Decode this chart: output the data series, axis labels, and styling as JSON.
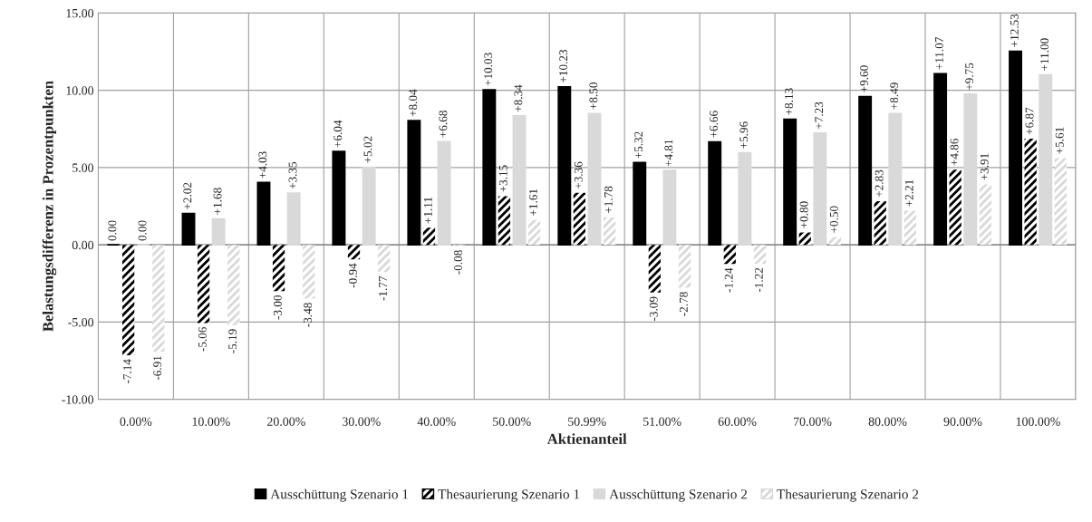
{
  "chart_data": {
    "type": "bar",
    "xlabel": "Aktienanteil",
    "ylabel": "Belastungsdifferenz in Prozentpunkten",
    "categories": [
      "0.00%",
      "10.00%",
      "20.00%",
      "30.00%",
      "40.00%",
      "50.00%",
      "50.99%",
      "51.00%",
      "60.00%",
      "70.00%",
      "80.00%",
      "90.00%",
      "100.00%"
    ],
    "series": [
      {
        "name": "Ausschüttung Szenario 1",
        "color": "#000000",
        "values": [
          0.0,
          2.02,
          4.03,
          6.04,
          8.04,
          10.03,
          10.23,
          5.32,
          6.66,
          8.13,
          9.6,
          11.07,
          12.53
        ],
        "value_labels": [
          "0.00",
          "+2.02",
          "+4.03",
          "+6.04",
          "+8.04",
          "+10.03",
          "+10.23",
          "+5.32",
          "+6.66",
          "+8.13",
          "+9.60",
          "+11.07",
          "+12.53"
        ]
      },
      {
        "name": "Thesaurierung Szenario 1",
        "color": "#000000",
        "values": [
          -7.14,
          -5.06,
          -3.0,
          -0.94,
          1.11,
          3.15,
          3.36,
          -3.09,
          -1.24,
          0.8,
          2.83,
          4.86,
          6.87
        ],
        "value_labels": [
          "-7.14",
          "-5.06",
          "-3.00",
          "-0.94",
          "+1.11",
          "+3.15",
          "+3.36",
          "-3.09",
          "-1.24",
          "+0.80",
          "+2.83",
          "+4.86",
          "+6.87"
        ]
      },
      {
        "name": "Ausschüttung Szenario 2",
        "color": "#d9d9d9",
        "values": [
          0.0,
          1.68,
          3.35,
          5.02,
          6.68,
          8.34,
          8.5,
          4.81,
          5.96,
          7.23,
          8.49,
          9.75,
          11.0
        ],
        "value_labels": [
          "0.00",
          "+1.68",
          "+3.35",
          "+5.02",
          "+6.68",
          "+8.34",
          "+8.50",
          "+4.81",
          "+5.96",
          "+7.23",
          "+8.49",
          "+9.75",
          "+11.00"
        ]
      },
      {
        "name": "Thesaurierung Szenario 2",
        "color": "#d9d9d9",
        "values": [
          -6.91,
          -5.19,
          -3.48,
          -1.77,
          -0.08,
          1.61,
          1.78,
          -2.78,
          -1.22,
          0.5,
          2.21,
          3.91,
          5.61
        ],
        "value_labels": [
          "-6.91",
          "-5.19",
          "-3.48",
          "-1.77",
          "-0.08",
          "+1.61",
          "+1.78",
          "-2.78",
          "-1.22",
          "+0.50",
          "+2.21",
          "+3.91",
          "+5.61"
        ]
      }
    ],
    "ylim": [
      -10,
      15
    ],
    "yticks": [
      {
        "value": -10,
        "label": "-10.00"
      },
      {
        "value": -5,
        "label": "-5.00"
      },
      {
        "value": 0,
        "label": "0.00"
      },
      {
        "value": 5,
        "label": "5.00"
      },
      {
        "value": 10,
        "label": "10.00"
      },
      {
        "value": 15,
        "label": "15.00"
      }
    ],
    "grid": "y",
    "legend": "bottom"
  }
}
